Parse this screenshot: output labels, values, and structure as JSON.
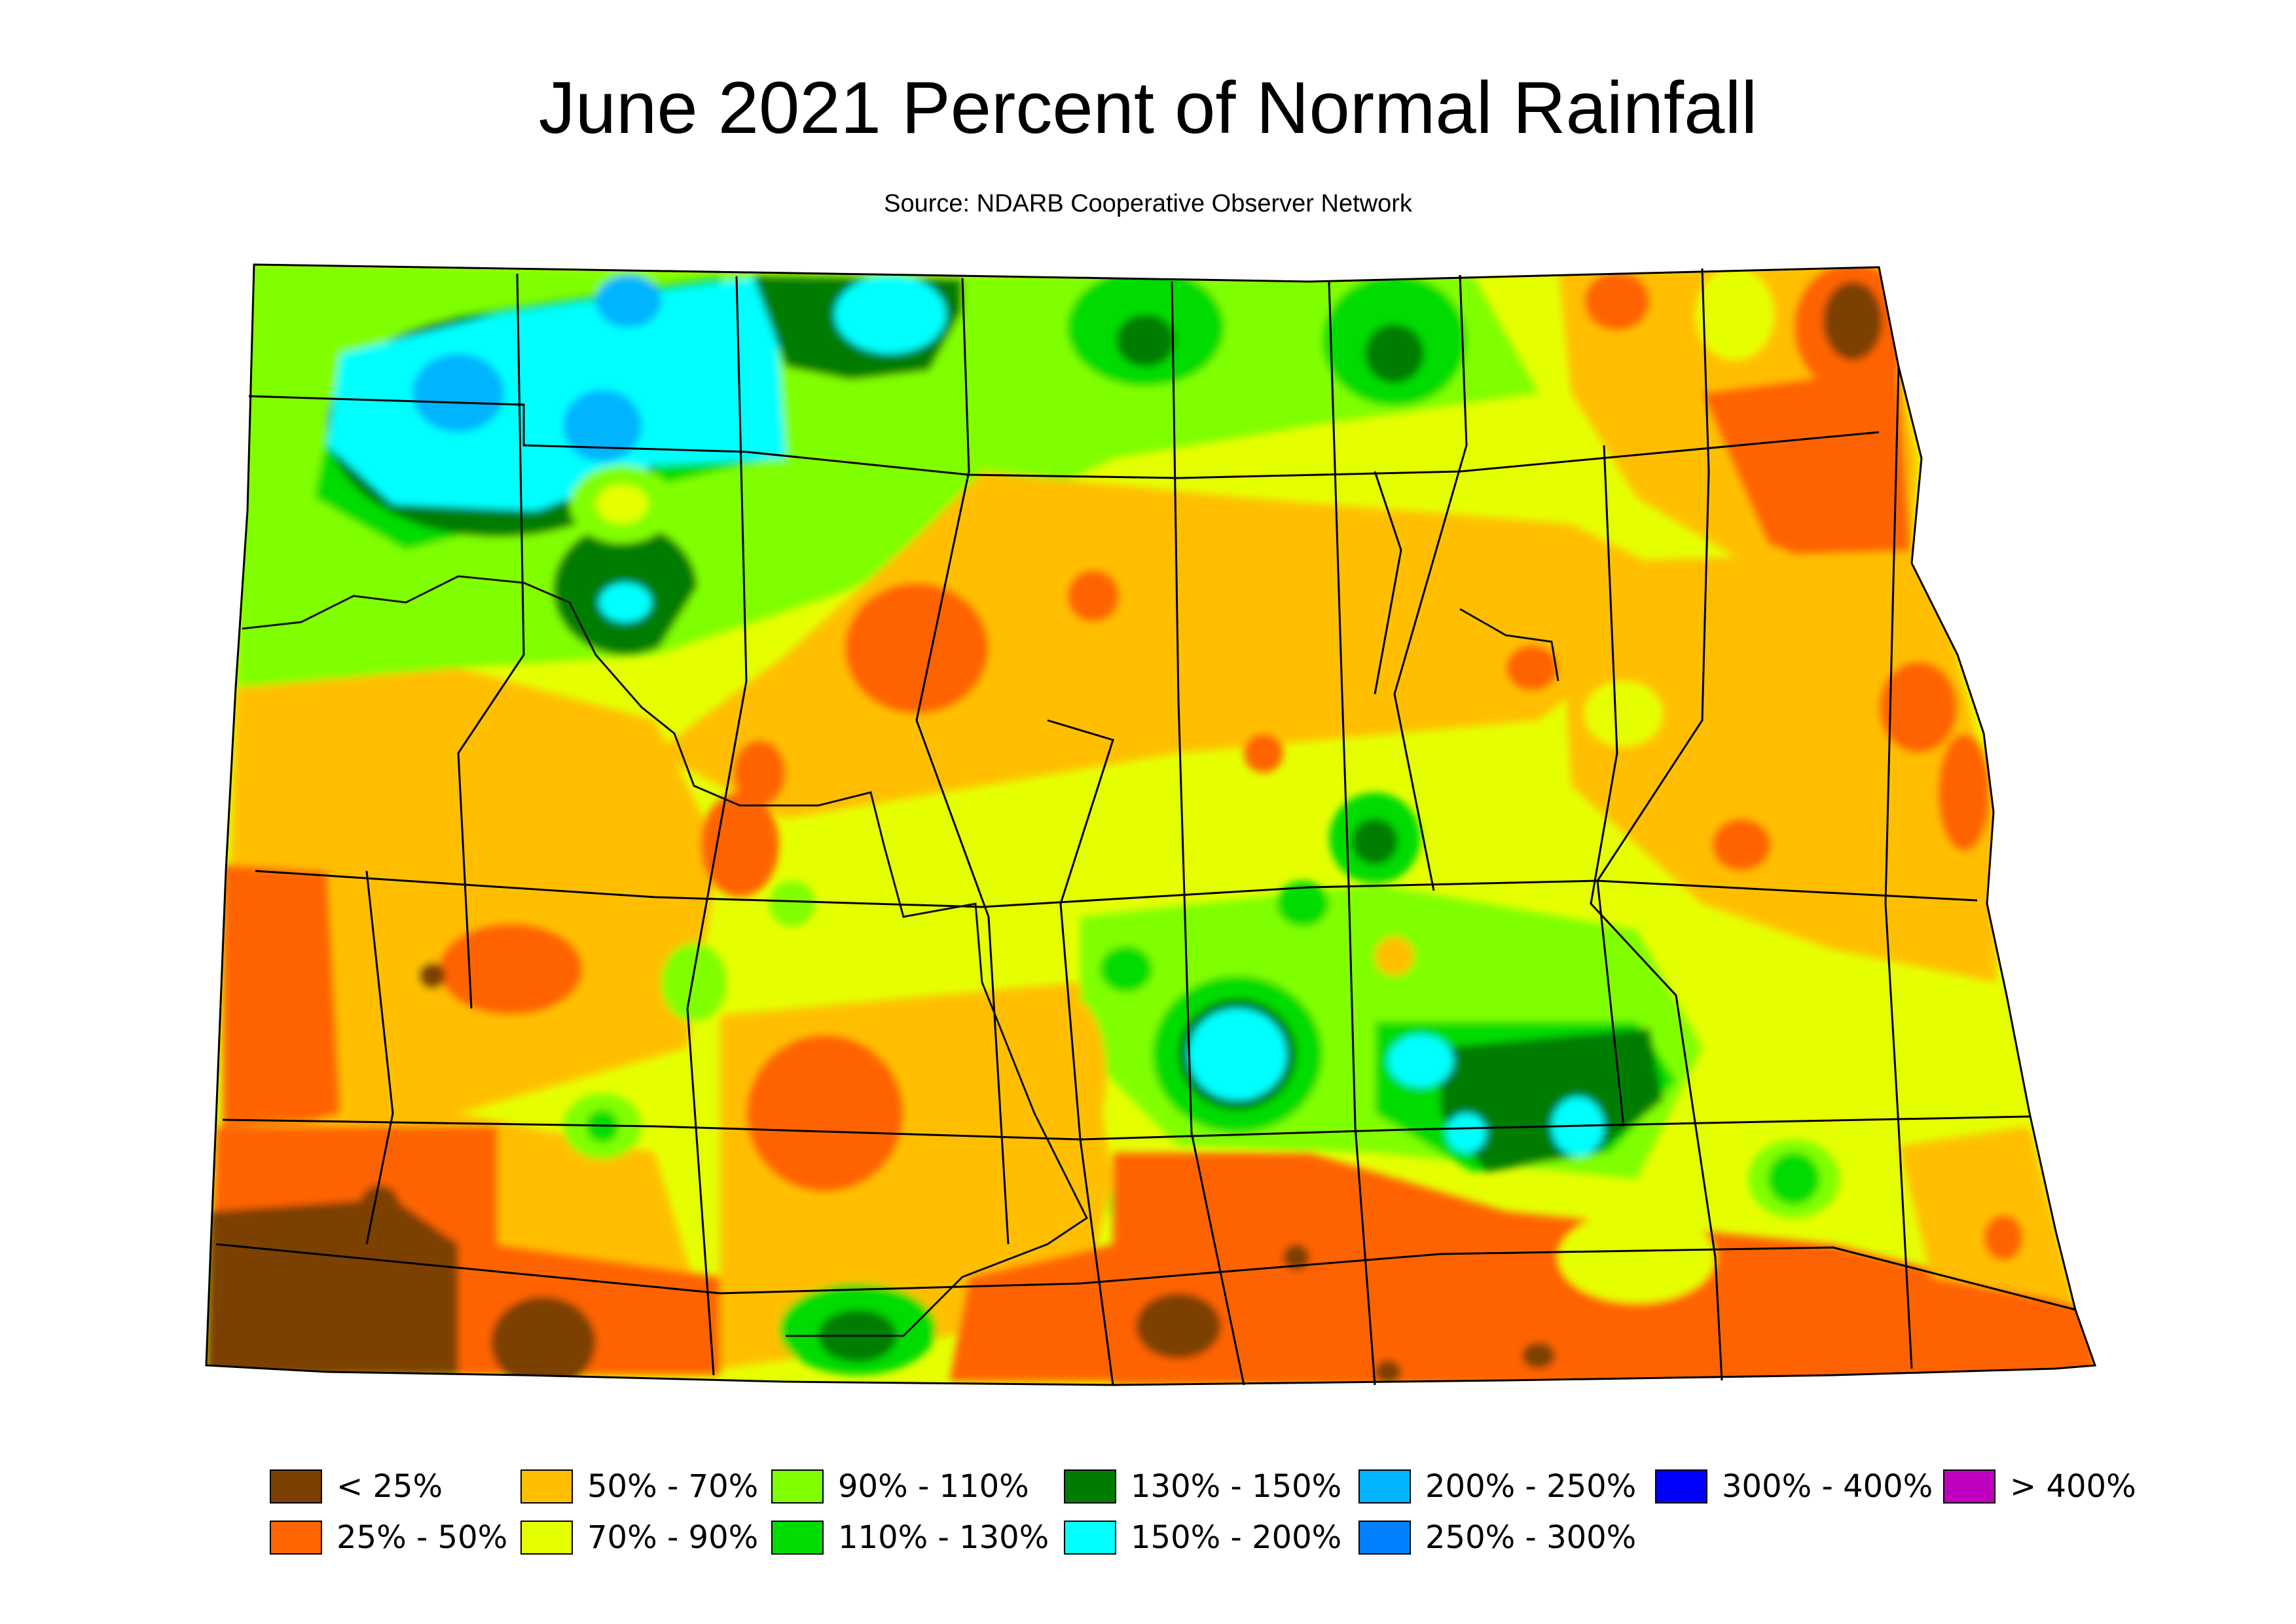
{
  "title": "June 2021 Percent of Normal Rainfall",
  "subtitle": "Source: NDARB Cooperative Observer Network",
  "colors": {
    "lt25": "#7b3f00",
    "p25_50": "#ff6400",
    "p50_70": "#ffbf00",
    "p70_90": "#e6ff00",
    "p90_110": "#80ff00",
    "p110_130": "#00dc00",
    "p130_150": "#007d00",
    "p150_200": "#00ffff",
    "p200_250": "#00b4ff",
    "p250_300": "#0080ff",
    "p300_400": "#0000ff",
    "gt400": "#c000c0"
  },
  "legend": [
    {
      "label": "< 25%",
      "color_key": "lt25"
    },
    {
      "label": "25% - 50%",
      "color_key": "p25_50"
    },
    {
      "label": "50% - 70%",
      "color_key": "p50_70"
    },
    {
      "label": "70% - 90%",
      "color_key": "p70_90"
    },
    {
      "label": "90% - 110%",
      "color_key": "p90_110"
    },
    {
      "label": "110% - 130%",
      "color_key": "p110_130"
    },
    {
      "label": "130% - 150%",
      "color_key": "p130_150"
    },
    {
      "label": "150% - 200%",
      "color_key": "p150_200"
    },
    {
      "label": "200% - 250%",
      "color_key": "p200_250"
    },
    {
      "label": "250% - 300%",
      "color_key": "p250_300"
    },
    {
      "label": "300% - 400%",
      "color_key": "p300_400"
    },
    {
      "label": "> 400%",
      "color_key": "gt400"
    }
  ]
}
